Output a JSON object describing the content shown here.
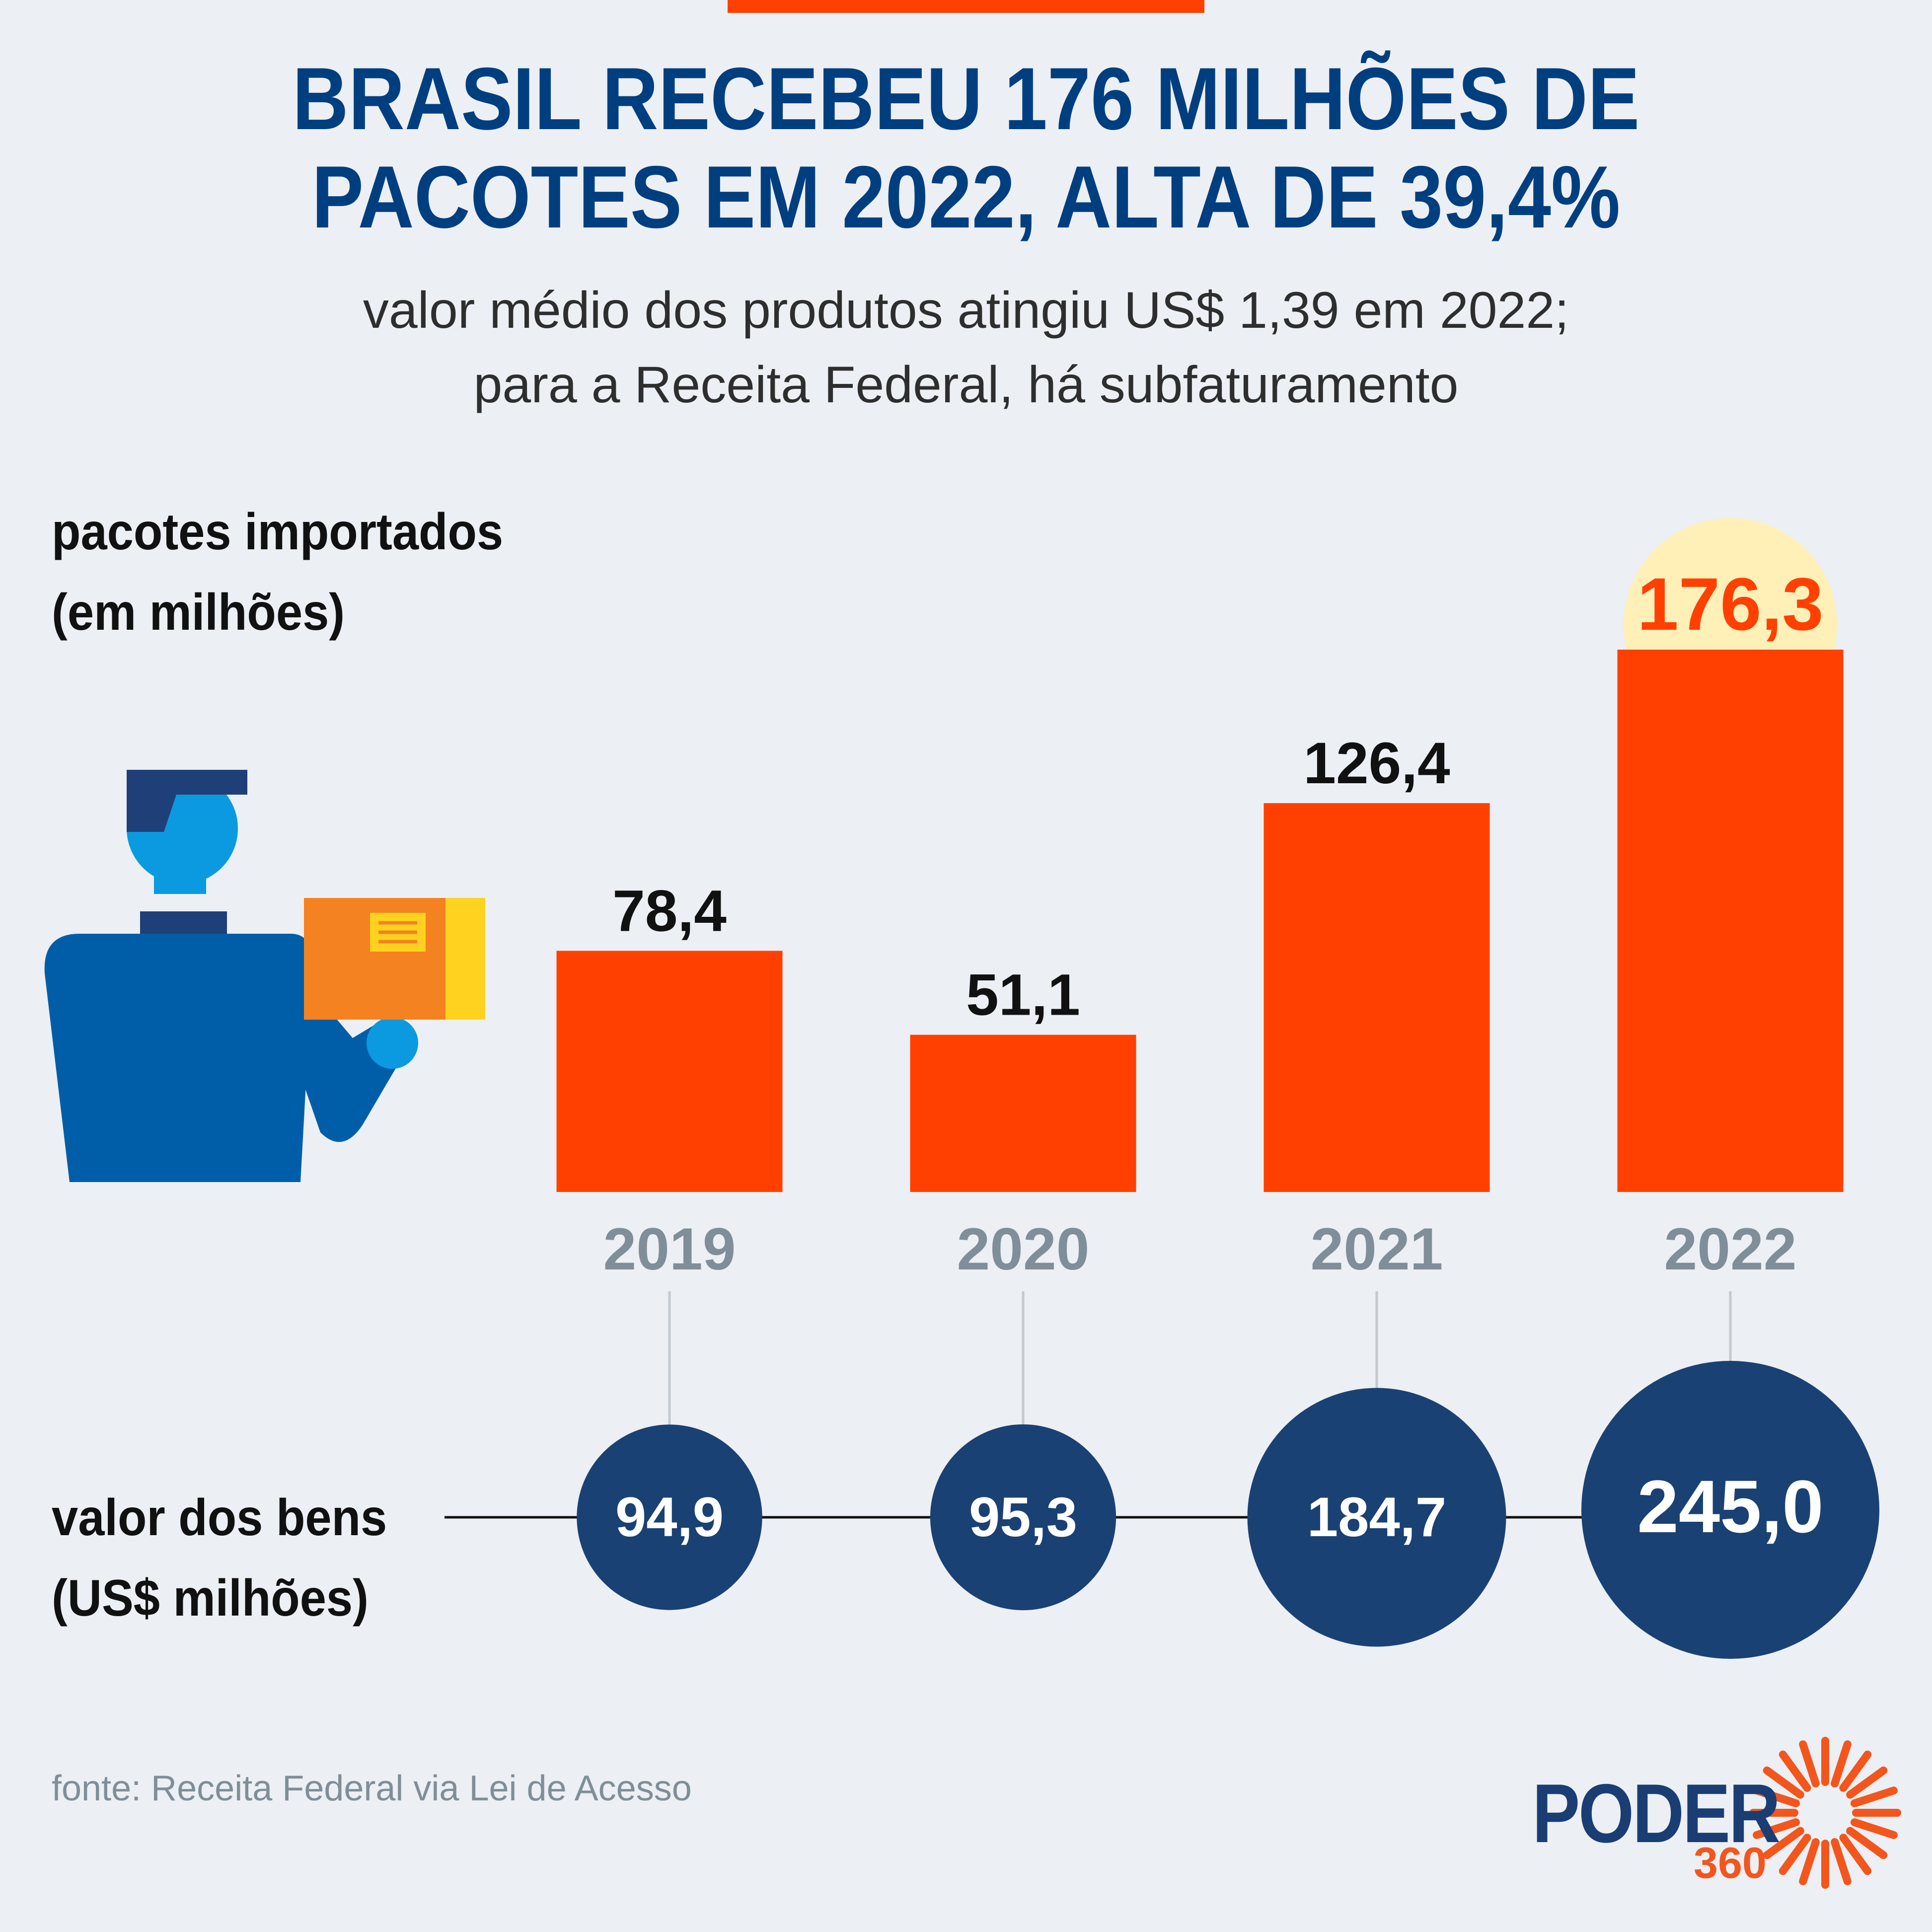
{
  "title_lines": [
    "BRASIL RECEBEU 176 MILHÕES DE",
    "PACOTES EM 2022, ALTA DE 39,4%"
  ],
  "subtitle_lines": [
    "valor médio dos produtos atingiu US$ 1,39 em 2022;",
    "para a Receita Federal, há subfaturamento"
  ],
  "bars_label_lines": [
    "pacotes importados",
    "(em milhões)"
  ],
  "circles_label_lines": [
    "valor dos bens",
    "(US$ milhões)"
  ],
  "source": "fonte: Receita Federal via Lei de Acesso",
  "logo": {
    "word": "PODER",
    "number": "360"
  },
  "colors": {
    "bar": "#ff4000",
    "circle": "#1a4173",
    "highlight": "#fff0b8",
    "year": "#7f8e98",
    "title": "#003f7f"
  },
  "chart_data": [
    {
      "type": "bar",
      "categories": [
        "2019",
        "2020",
        "2021",
        "2022"
      ],
      "values": [
        78.4,
        51.1,
        126.4,
        176.3
      ],
      "value_labels": [
        "78,4",
        "51,1",
        "126,4",
        "176,3"
      ],
      "highlight_category": "2022"
    },
    {
      "type": "bubble",
      "categories": [
        "2019",
        "2020",
        "2021",
        "2022"
      ],
      "values": [
        94.9,
        95.3,
        184.7,
        245.0
      ],
      "value_labels": [
        "94,9",
        "95,3",
        "184,7",
        "245,0"
      ]
    }
  ]
}
